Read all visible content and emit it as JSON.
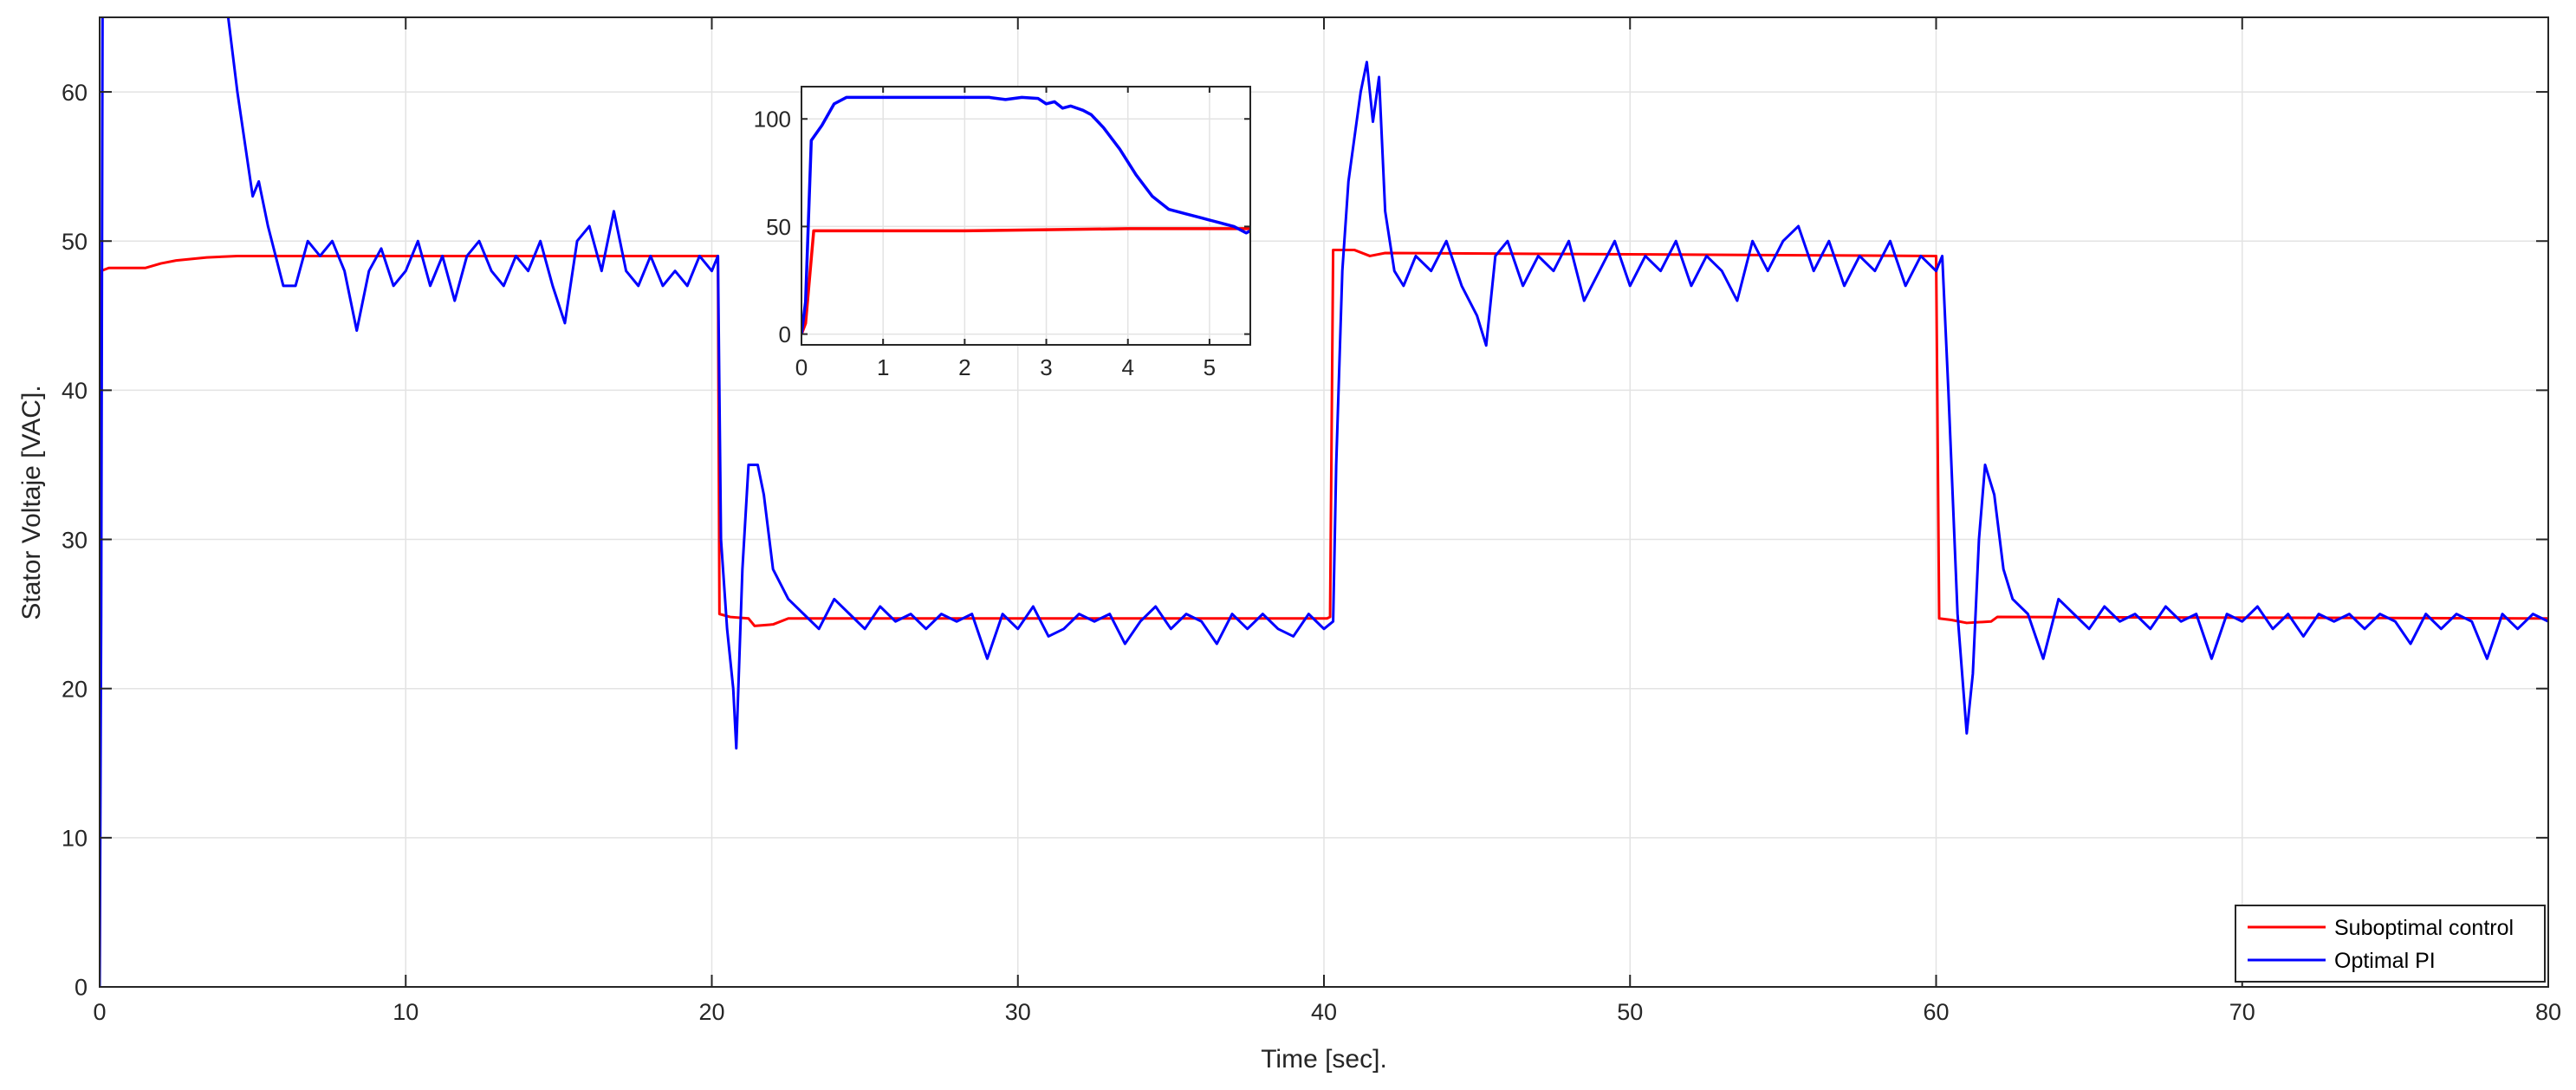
{
  "chart_data": [
    {
      "id": "main",
      "type": "line",
      "xlabel": "Time [sec].",
      "ylabel": "Stator Voltaje [VAC].",
      "xlim": [
        0,
        80
      ],
      "ylim": [
        0,
        65
      ],
      "xticks": [
        0,
        10,
        20,
        30,
        40,
        50,
        60,
        70,
        80
      ],
      "yticks": [
        0,
        10,
        20,
        30,
        40,
        50,
        60
      ],
      "grid": true,
      "legend": "bottom-right",
      "series": [
        {
          "name": "Suboptimal control",
          "color": "#ff0000",
          "points": [
            [
              0,
              0
            ],
            [
              0.05,
              48
            ],
            [
              0.3,
              48.2
            ],
            [
              1.5,
              48.2
            ],
            [
              2,
              48.5
            ],
            [
              2.5,
              48.7
            ],
            [
              3.5,
              48.9
            ],
            [
              4.5,
              49
            ],
            [
              20.2,
              49
            ],
            [
              20.25,
              25
            ],
            [
              20.6,
              24.8
            ],
            [
              21.2,
              24.7
            ],
            [
              21.4,
              24.2
            ],
            [
              22,
              24.3
            ],
            [
              22.5,
              24.7
            ],
            [
              40.1,
              24.7
            ],
            [
              40.2,
              24.8
            ],
            [
              40.3,
              49.4
            ],
            [
              41,
              49.4
            ],
            [
              41.5,
              49
            ],
            [
              42,
              49.2
            ],
            [
              60,
              49
            ],
            [
              60.1,
              24.7
            ],
            [
              60.5,
              24.6
            ],
            [
              61,
              24.4
            ],
            [
              61.8,
              24.5
            ],
            [
              62,
              24.8
            ],
            [
              80,
              24.7
            ]
          ]
        },
        {
          "name": "Optimal PI",
          "color": "#0000ff",
          "points": [
            [
              0,
              0
            ],
            [
              0.05,
              25
            ],
            [
              0.1,
              70
            ],
            [
              0.3,
              90
            ],
            [
              0.5,
              110
            ],
            [
              4.2,
              65
            ],
            [
              4.5,
              60
            ],
            [
              5,
              53
            ],
            [
              5.2,
              54
            ],
            [
              5.5,
              51
            ],
            [
              6,
              47
            ],
            [
              6.4,
              47
            ],
            [
              6.8,
              50
            ],
            [
              7.2,
              49
            ],
            [
              7.6,
              50
            ],
            [
              8,
              48
            ],
            [
              8.4,
              44
            ],
            [
              8.8,
              48
            ],
            [
              9.2,
              49.5
            ],
            [
              9.6,
              47
            ],
            [
              10,
              48
            ],
            [
              10.4,
              50
            ],
            [
              10.8,
              47
            ],
            [
              11.2,
              49
            ],
            [
              11.6,
              46
            ],
            [
              12,
              49
            ],
            [
              12.4,
              50
            ],
            [
              12.8,
              48
            ],
            [
              13.2,
              47
            ],
            [
              13.6,
              49
            ],
            [
              14,
              48
            ],
            [
              14.4,
              50
            ],
            [
              14.8,
              47
            ],
            [
              15.2,
              44.5
            ],
            [
              15.6,
              50
            ],
            [
              16,
              51
            ],
            [
              16.4,
              48
            ],
            [
              16.8,
              52
            ],
            [
              17.2,
              48
            ],
            [
              17.6,
              47
            ],
            [
              18,
              49
            ],
            [
              18.4,
              47
            ],
            [
              18.8,
              48
            ],
            [
              19.2,
              47
            ],
            [
              19.6,
              49
            ],
            [
              20,
              48
            ],
            [
              20.2,
              49
            ],
            [
              20.3,
              30
            ],
            [
              20.5,
              24
            ],
            [
              20.7,
              20
            ],
            [
              20.8,
              16
            ],
            [
              21,
              28
            ],
            [
              21.2,
              35
            ],
            [
              21.5,
              35
            ],
            [
              21.7,
              33
            ],
            [
              22,
              28
            ],
            [
              22.5,
              26
            ],
            [
              23,
              25
            ],
            [
              23.5,
              24
            ],
            [
              24,
              26
            ],
            [
              24.5,
              25
            ],
            [
              25,
              24
            ],
            [
              25.5,
              25.5
            ],
            [
              26,
              24.5
            ],
            [
              26.5,
              25
            ],
            [
              27,
              24
            ],
            [
              27.5,
              25
            ],
            [
              28,
              24.5
            ],
            [
              28.5,
              25
            ],
            [
              29,
              22
            ],
            [
              29.5,
              25
            ],
            [
              30,
              24
            ],
            [
              30.5,
              25.5
            ],
            [
              31,
              23.5
            ],
            [
              31.5,
              24
            ],
            [
              32,
              25
            ],
            [
              32.5,
              24.5
            ],
            [
              33,
              25
            ],
            [
              33.5,
              23
            ],
            [
              34,
              24.5
            ],
            [
              34.5,
              25.5
            ],
            [
              35,
              24
            ],
            [
              35.5,
              25
            ],
            [
              36,
              24.5
            ],
            [
              36.5,
              23
            ],
            [
              37,
              25
            ],
            [
              37.5,
              24
            ],
            [
              38,
              25
            ],
            [
              38.5,
              24
            ],
            [
              39,
              23.5
            ],
            [
              39.5,
              25
            ],
            [
              40,
              24
            ],
            [
              40.3,
              24.5
            ],
            [
              40.4,
              35
            ],
            [
              40.6,
              48
            ],
            [
              40.8,
              54
            ],
            [
              41,
              57
            ],
            [
              41.2,
              60
            ],
            [
              41.4,
              62
            ],
            [
              41.6,
              58
            ],
            [
              41.8,
              61
            ],
            [
              42,
              52
            ],
            [
              42.3,
              48
            ],
            [
              42.6,
              47
            ],
            [
              43,
              49
            ],
            [
              43.5,
              48
            ],
            [
              44,
              50
            ],
            [
              44.5,
              47
            ],
            [
              45,
              45
            ],
            [
              45.3,
              43
            ],
            [
              45.6,
              49
            ],
            [
              46,
              50
            ],
            [
              46.5,
              47
            ],
            [
              47,
              49
            ],
            [
              47.5,
              48
            ],
            [
              48,
              50
            ],
            [
              48.5,
              46
            ],
            [
              49,
              48
            ],
            [
              49.5,
              50
            ],
            [
              50,
              47
            ],
            [
              50.5,
              49
            ],
            [
              51,
              48
            ],
            [
              51.5,
              50
            ],
            [
              52,
              47
            ],
            [
              52.5,
              49
            ],
            [
              53,
              48
            ],
            [
              53.5,
              46
            ],
            [
              54,
              50
            ],
            [
              54.5,
              48
            ],
            [
              55,
              50
            ],
            [
              55.5,
              51
            ],
            [
              56,
              48
            ],
            [
              56.5,
              50
            ],
            [
              57,
              47
            ],
            [
              57.5,
              49
            ],
            [
              58,
              48
            ],
            [
              58.5,
              50
            ],
            [
              59,
              47
            ],
            [
              59.5,
              49
            ],
            [
              60,
              48
            ],
            [
              60.2,
              49
            ],
            [
              60.4,
              40
            ],
            [
              60.7,
              25
            ],
            [
              61,
              17
            ],
            [
              61.2,
              21
            ],
            [
              61.4,
              30
            ],
            [
              61.6,
              35
            ],
            [
              61.9,
              33
            ],
            [
              62.2,
              28
            ],
            [
              62.5,
              26
            ],
            [
              63,
              25
            ],
            [
              63.5,
              22
            ],
            [
              64,
              26
            ],
            [
              64.5,
              25
            ],
            [
              65,
              24
            ],
            [
              65.5,
              25.5
            ],
            [
              66,
              24.5
            ],
            [
              66.5,
              25
            ],
            [
              67,
              24
            ],
            [
              67.5,
              25.5
            ],
            [
              68,
              24.5
            ],
            [
              68.5,
              25
            ],
            [
              69,
              22
            ],
            [
              69.5,
              25
            ],
            [
              70,
              24.5
            ],
            [
              70.5,
              25.5
            ],
            [
              71,
              24
            ],
            [
              71.5,
              25
            ],
            [
              72,
              23.5
            ],
            [
              72.5,
              25
            ],
            [
              73,
              24.5
            ],
            [
              73.5,
              25
            ],
            [
              74,
              24
            ],
            [
              74.5,
              25
            ],
            [
              75,
              24.5
            ],
            [
              75.5,
              23
            ],
            [
              76,
              25
            ],
            [
              76.5,
              24
            ],
            [
              77,
              25
            ],
            [
              77.5,
              24.5
            ],
            [
              78,
              22
            ],
            [
              78.5,
              25
            ],
            [
              79,
              24
            ],
            [
              79.5,
              25
            ],
            [
              80,
              24.5
            ]
          ]
        }
      ]
    },
    {
      "id": "inset",
      "type": "line",
      "xlim": [
        0,
        5.5
      ],
      "ylim": [
        -5,
        115
      ],
      "xticks": [
        0,
        1,
        2,
        3,
        4,
        5
      ],
      "yticks": [
        0,
        50,
        100
      ],
      "grid": true,
      "series": [
        {
          "name": "Suboptimal control",
          "color": "#ff0000",
          "points": [
            [
              0,
              0
            ],
            [
              0.05,
              5
            ],
            [
              0.15,
              48
            ],
            [
              0.3,
              48
            ],
            [
              1,
              48
            ],
            [
              2,
              48
            ],
            [
              3,
              48.5
            ],
            [
              4,
              49
            ],
            [
              5,
              49
            ],
            [
              5.5,
              49
            ]
          ]
        },
        {
          "name": "Optimal PI",
          "color": "#0000ff",
          "points": [
            [
              0,
              0
            ],
            [
              0.05,
              15
            ],
            [
              0.12,
              90
            ],
            [
              0.25,
              97
            ],
            [
              0.4,
              107
            ],
            [
              0.55,
              110
            ],
            [
              1,
              110
            ],
            [
              2,
              110
            ],
            [
              2.3,
              110
            ],
            [
              2.5,
              109
            ],
            [
              2.7,
              110
            ],
            [
              2.9,
              109.5
            ],
            [
              3,
              107
            ],
            [
              3.1,
              108
            ],
            [
              3.2,
              105
            ],
            [
              3.3,
              106
            ],
            [
              3.45,
              104
            ],
            [
              3.55,
              102
            ],
            [
              3.7,
              96
            ],
            [
              3.9,
              86
            ],
            [
              4.1,
              74
            ],
            [
              4.3,
              64
            ],
            [
              4.5,
              58
            ],
            [
              4.7,
              56
            ],
            [
              4.9,
              54
            ],
            [
              5.1,
              52
            ],
            [
              5.3,
              50
            ],
            [
              5.45,
              47
            ],
            [
              5.5,
              48
            ]
          ]
        }
      ]
    }
  ]
}
